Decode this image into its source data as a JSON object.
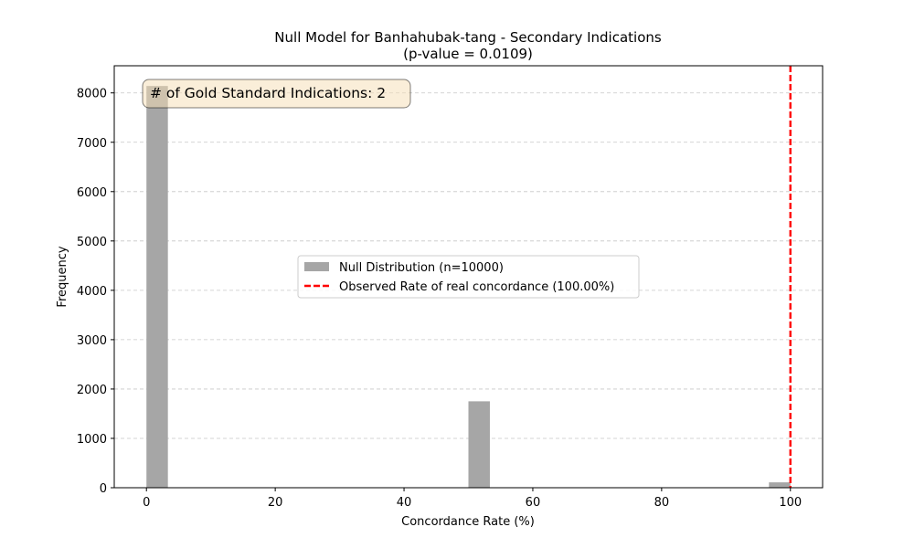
{
  "chart_data": {
    "type": "bar",
    "title": "Null Model for Banhahubak-tang - Secondary Indications",
    "subtitle": "(p-value = 0.0109)",
    "xlabel": "Concordance Rate (%)",
    "ylabel": "Frequency",
    "xlim": [
      -5,
      105
    ],
    "ylim": [
      0,
      8550
    ],
    "xticks": [
      0,
      20,
      40,
      60,
      80,
      100
    ],
    "yticks": [
      0,
      1000,
      2000,
      3000,
      4000,
      5000,
      6000,
      7000,
      8000
    ],
    "grid": "y-dashed",
    "legend_position": "center",
    "annotation": "# of Gold Standard Indications: 2",
    "series": [
      {
        "name": "Null Distribution (n=10000)",
        "kind": "histogram",
        "color": "#a6a6a6",
        "bins": [
          {
            "x0": 0.0,
            "x1": 3.33,
            "count": 8140
          },
          {
            "x0": 50.0,
            "x1": 53.33,
            "count": 1751
          },
          {
            "x0": 96.67,
            "x1": 100.0,
            "count": 109
          }
        ]
      },
      {
        "name": "Observed Rate of real concordance (100.00%)",
        "kind": "vline",
        "color": "#ff0000",
        "x": 100.0
      }
    ]
  }
}
